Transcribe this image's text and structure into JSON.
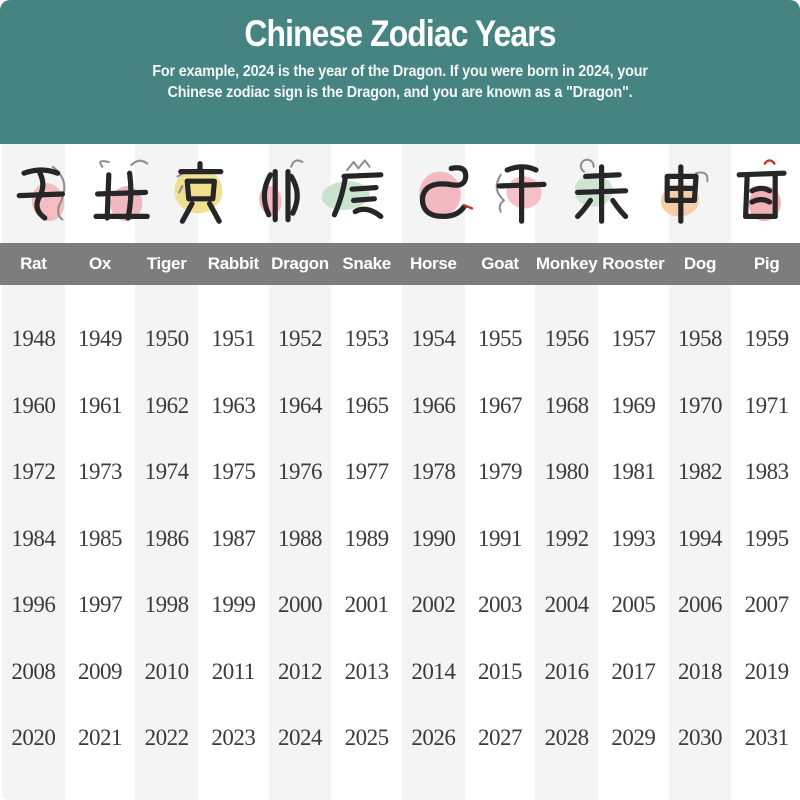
{
  "header": {
    "title": "Chinese Zodiac Years",
    "subtitle_line1": "For example, 2024 is the year of the Dragon. If you were born in 2024, your",
    "subtitle_line2": "Chinese zodiac sign is the Dragon, and you are known as a \"Dragon\".",
    "background_color": "#468482",
    "text_color": "#ffffff"
  },
  "table": {
    "name_bar_color": "#7d7d7d",
    "name_text_color": "#ffffff",
    "alt_column_color": "#f4f4f4",
    "year_text_color": "#3b3b3b",
    "animals": [
      {
        "label": "Rat",
        "icon": "rat-icon",
        "blob_color": "#f2b3ba"
      },
      {
        "label": "Ox",
        "icon": "ox-icon",
        "blob_color": "#f0acb4"
      },
      {
        "label": "Tiger",
        "icon": "tiger-icon",
        "blob_color": "#f0da7e"
      },
      {
        "label": "Rabbit",
        "icon": "rabbit-icon",
        "blob_color": "#f3a8b6"
      },
      {
        "label": "Dragon",
        "icon": "dragon-icon",
        "blob_color": "#bfdfc3"
      },
      {
        "label": "Snake",
        "icon": "snake-icon",
        "blob_color": "#f2aeb6"
      },
      {
        "label": "Horse",
        "icon": "horse-icon",
        "blob_color": "#f3b6bb"
      },
      {
        "label": "Goat",
        "icon": "goat-icon",
        "blob_color": "#c6e2c9"
      },
      {
        "label": "Monkey",
        "icon": "monkey-icon",
        "blob_color": "#f4c69b"
      },
      {
        "label": "Rooster",
        "icon": "rooster-icon",
        "blob_color": "#f2a3a8"
      },
      {
        "label": "Dog",
        "icon": "dog-icon",
        "blob_color": "#f1db8e"
      },
      {
        "label": "Pig",
        "icon": "pig-icon",
        "blob_color": "#f2abb5"
      }
    ]
  },
  "chart_data": {
    "type": "table",
    "title": "Chinese Zodiac Years",
    "subtitle": "For example, 2024 is the year of the Dragon. If you were born in 2024, your Chinese zodiac sign is the Dragon, and you are known as a \"Dragon\".",
    "columns": [
      "Rat",
      "Ox",
      "Tiger",
      "Rabbit",
      "Dragon",
      "Snake",
      "Horse",
      "Goat",
      "Monkey",
      "Rooster",
      "Dog",
      "Pig"
    ],
    "rows": [
      [
        1948,
        1949,
        1950,
        1951,
        1952,
        1953,
        1954,
        1955,
        1956,
        1957,
        1958,
        1959
      ],
      [
        1960,
        1961,
        1962,
        1963,
        1964,
        1965,
        1966,
        1967,
        1968,
        1969,
        1970,
        1971
      ],
      [
        1972,
        1973,
        1974,
        1975,
        1976,
        1977,
        1978,
        1979,
        1980,
        1981,
        1982,
        1983
      ],
      [
        1984,
        1985,
        1986,
        1987,
        1988,
        1989,
        1990,
        1991,
        1992,
        1993,
        1994,
        1995
      ],
      [
        1996,
        1997,
        1998,
        1999,
        2000,
        2001,
        2002,
        2003,
        2004,
        2005,
        2006,
        2007
      ],
      [
        2008,
        2009,
        2010,
        2011,
        2012,
        2013,
        2014,
        2015,
        2016,
        2017,
        2018,
        2019
      ],
      [
        2020,
        2021,
        2022,
        2023,
        2024,
        2025,
        2026,
        2027,
        2028,
        2029,
        2030,
        2031
      ]
    ]
  }
}
